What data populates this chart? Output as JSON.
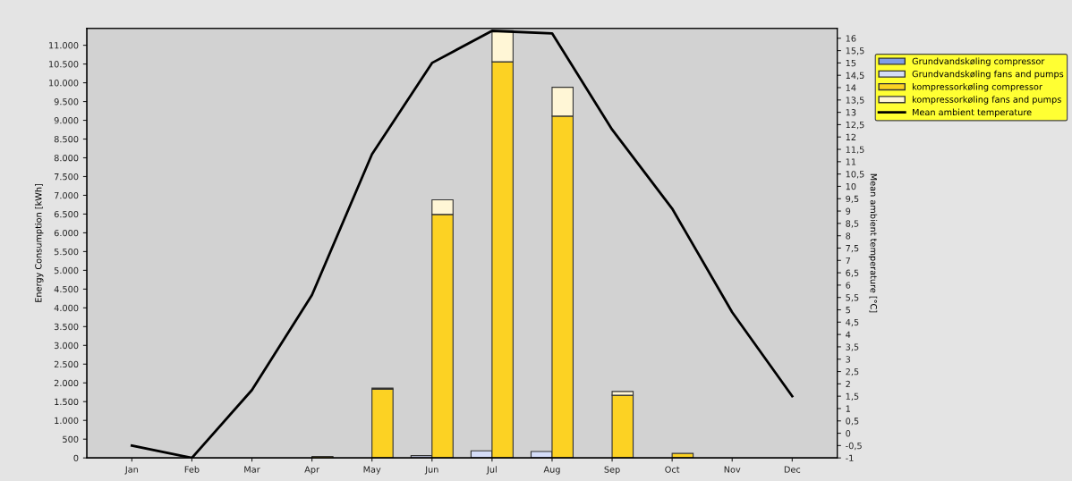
{
  "chart_data": {
    "type": "bar",
    "ylabel": "Energy Consumption [kWh]",
    "y2label": "Mean ambient temperature [°C]",
    "categories": [
      "Jan",
      "Feb",
      "Mar",
      "Apr",
      "May",
      "Jun",
      "Jul",
      "Aug",
      "Sep",
      "Oct",
      "Nov",
      "Dec"
    ],
    "series": [
      {
        "name": "Grundvandskøling compressor",
        "color": "#7f9de8",
        "values": [
          0,
          0,
          0,
          0,
          0,
          0,
          0,
          0,
          0,
          0,
          0,
          0
        ]
      },
      {
        "name": "Grundvandskøling fans and pumps",
        "color": "#d4dcf7",
        "base": [
          null,
          null,
          null,
          null,
          null,
          0,
          0,
          0,
          null,
          null,
          null,
          null
        ],
        "values": [
          0,
          0,
          0,
          0,
          0,
          60,
          190,
          170,
          0,
          0,
          0,
          0
        ]
      },
      {
        "name": "kompressorkøling compressor",
        "color": "#fcd223",
        "values": [
          0,
          0,
          0,
          40,
          1830,
          6490,
          10560,
          9110,
          1670,
          120,
          0,
          0
        ]
      },
      {
        "name": "kompressorkøling fans and pumps",
        "color": "#fff6d6",
        "base": [
          null,
          null,
          null,
          null,
          1830,
          6490,
          10560,
          9110,
          1670,
          null,
          null,
          null
        ],
        "values": [
          0,
          0,
          0,
          0,
          30,
          390,
          830,
          770,
          100,
          0,
          0,
          0
        ]
      },
      {
        "name": "Mean ambient temperature",
        "type": "line",
        "axis": "y2",
        "color": "#000000",
        "values": [
          -0.5,
          -1,
          1.75,
          5.6,
          11.3,
          15,
          16.3,
          16.2,
          12.3,
          9.1,
          4.9,
          1.5
        ]
      }
    ],
    "ylim": [
      0,
      11450
    ],
    "yticks": [
      0,
      500,
      {
        "value": 1000,
        "label": "1.000"
      },
      {
        "value": 1500,
        "label": "1.500"
      },
      {
        "value": 2000,
        "label": "2.000"
      },
      {
        "value": 2500,
        "label": "2.500"
      },
      {
        "value": 3000,
        "label": "3.000"
      },
      {
        "value": 3500,
        "label": "3.500"
      },
      {
        "value": 4000,
        "label": "4.000"
      },
      {
        "value": 4500,
        "label": "4.500"
      },
      {
        "value": 5000,
        "label": "5.000"
      },
      {
        "value": 5500,
        "label": "5.500"
      },
      {
        "value": 6000,
        "label": "6.000"
      },
      {
        "value": 6500,
        "label": "6.500"
      },
      {
        "value": 7000,
        "label": "7.000"
      },
      {
        "value": 7500,
        "label": "7.500"
      },
      {
        "value": 8000,
        "label": "8.000"
      },
      {
        "value": 8500,
        "label": "8.500"
      },
      {
        "value": 9000,
        "label": "9.000"
      },
      {
        "value": 9500,
        "label": "9.500"
      },
      {
        "value": 10000,
        "label": "10.000"
      },
      {
        "value": 10500,
        "label": "10.500"
      },
      {
        "value": 11000,
        "label": "11.000"
      }
    ],
    "y2lim": [
      -1,
      16.4
    ],
    "y2ticks": [
      -1,
      {
        "value": -0.5,
        "label": "-0,5"
      },
      0,
      {
        "value": 0.5,
        "label": "0,5"
      },
      1,
      {
        "value": 1.5,
        "label": "1,5"
      },
      2,
      {
        "value": 2.5,
        "label": "2,5"
      },
      3,
      {
        "value": 3.5,
        "label": "3,5"
      },
      4,
      {
        "value": 4.5,
        "label": "4,5"
      },
      5,
      {
        "value": 5.5,
        "label": "5,5"
      },
      6,
      {
        "value": 6.5,
        "label": "6,5"
      },
      7,
      {
        "value": 7.5,
        "label": "7,5"
      },
      8,
      {
        "value": 8.5,
        "label": "8,5"
      },
      9,
      {
        "value": 9.5,
        "label": "9,5"
      },
      10,
      {
        "value": 10.5,
        "label": "10,5"
      },
      11,
      {
        "value": 11.5,
        "label": "11,5"
      },
      12,
      {
        "value": 12.5,
        "label": "12,5"
      },
      13,
      {
        "value": 13.5,
        "label": "13,5"
      },
      14,
      {
        "value": 14.5,
        "label": "14,5"
      },
      15,
      {
        "value": 15.5,
        "label": "15,5"
      },
      16
    ],
    "grid": false,
    "legend": "top right",
    "marker": "none",
    "line_style": "solid"
  }
}
